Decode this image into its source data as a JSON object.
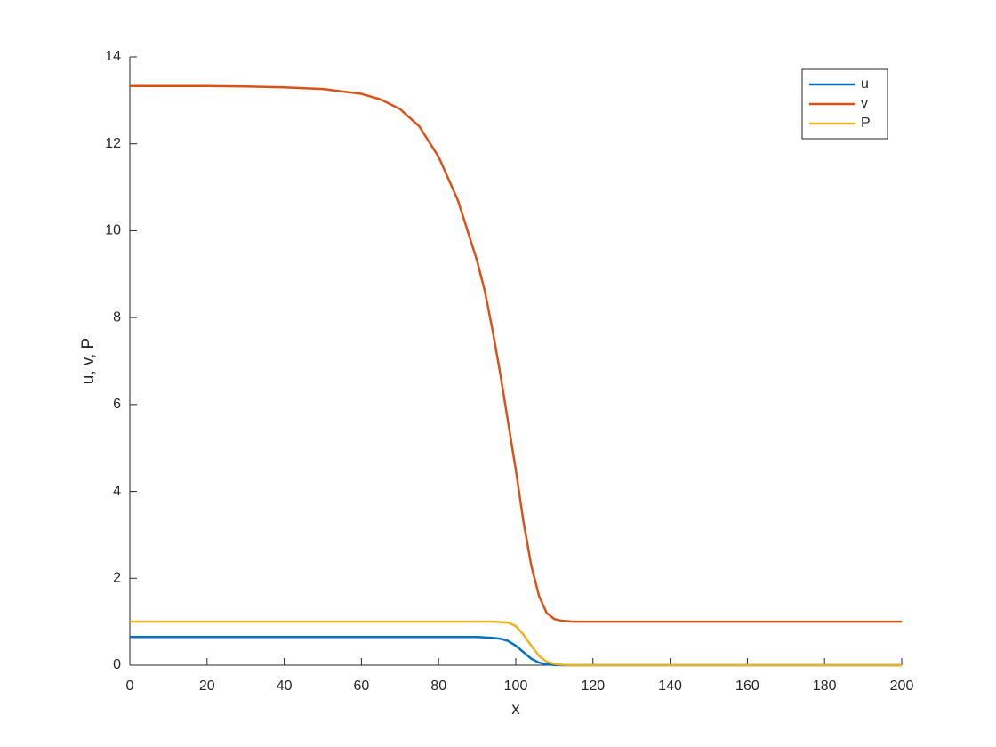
{
  "chart_data": {
    "type": "line",
    "xlabel": "x",
    "ylabel": "u, v, P",
    "x": [
      0,
      10,
      20,
      30,
      40,
      50,
      60,
      65,
      70,
      75,
      80,
      85,
      90,
      92,
      94,
      96,
      98,
      100,
      102,
      104,
      106,
      108,
      110,
      112,
      115,
      120,
      130,
      140,
      150,
      160,
      170,
      180,
      190,
      200
    ],
    "series": [
      {
        "name": "u",
        "color": "#0072BD",
        "values": [
          0.65,
          0.65,
          0.65,
          0.65,
          0.65,
          0.65,
          0.65,
          0.65,
          0.65,
          0.65,
          0.65,
          0.65,
          0.65,
          0.64,
          0.63,
          0.61,
          0.56,
          0.45,
          0.3,
          0.15,
          0.06,
          0.02,
          0.005,
          0,
          0,
          0,
          0,
          0,
          0,
          0,
          0,
          0,
          0,
          0
        ]
      },
      {
        "name": "v",
        "color": "#D95319",
        "values": [
          13.33,
          13.33,
          13.33,
          13.32,
          13.3,
          13.26,
          13.15,
          13.02,
          12.8,
          12.4,
          11.7,
          10.7,
          9.3,
          8.6,
          7.7,
          6.7,
          5.6,
          4.5,
          3.3,
          2.3,
          1.6,
          1.2,
          1.06,
          1.02,
          1.0,
          1.0,
          1.0,
          1.0,
          1.0,
          1.0,
          1.0,
          1.0,
          1.0,
          1.0
        ]
      },
      {
        "name": "P",
        "color": "#EDB120",
        "values": [
          1.0,
          1.0,
          1.0,
          1.0,
          1.0,
          1.0,
          1.0,
          1.0,
          1.0,
          1.0,
          1.0,
          1.0,
          1.0,
          1.0,
          1.0,
          0.99,
          0.98,
          0.9,
          0.7,
          0.45,
          0.22,
          0.08,
          0.03,
          0.01,
          0,
          0,
          0,
          0,
          0,
          0,
          0,
          0,
          0,
          0
        ]
      }
    ],
    "xlim": [
      0,
      200
    ],
    "xticks": [
      0,
      20,
      40,
      60,
      80,
      100,
      120,
      140,
      160,
      180,
      200
    ],
    "ylim": [
      0,
      14
    ],
    "yticks": [
      0,
      2,
      4,
      6,
      8,
      10,
      12,
      14
    ],
    "grid": false,
    "legend": "northeast"
  }
}
